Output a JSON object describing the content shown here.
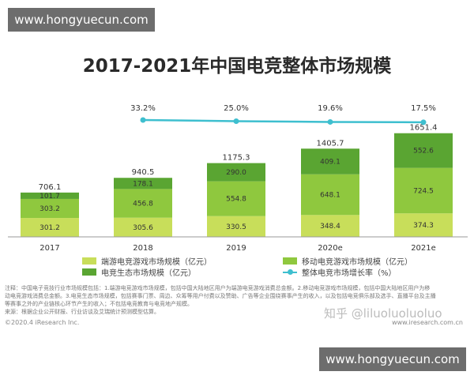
{
  "watermarks": {
    "top": "www.hongyuecun.com",
    "bottom": "www.hongyuecun.com"
  },
  "colors": {
    "client_games": "#c8de5a",
    "mobile_games": "#8fc83e",
    "ecosystem": "#5aa532",
    "growth_line": "#3ebfcf"
  },
  "chart_data": {
    "type": "bar",
    "stacked": true,
    "title": "2017-2021年中国电竞整体市场规模",
    "categories": [
      "2017",
      "2018",
      "2019",
      "2020e",
      "2021e"
    ],
    "series": [
      {
        "name": "端游电竞游戏市场规模（亿元）",
        "values": [
          301.2,
          305.6,
          330.5,
          348.4,
          374.3
        ],
        "value_labels": [
          "301.2",
          "305.6",
          "330.5",
          "348.4",
          "374.3"
        ]
      },
      {
        "name": "移动电竞游戏市场规模（亿元）",
        "values": [
          303.2,
          456.8,
          554.8,
          648.1,
          724.5
        ],
        "value_labels": [
          "303.2",
          "456.8",
          "554.8",
          "648.1",
          "724.5"
        ]
      },
      {
        "name": "电竞生态市场规模（亿元）",
        "values": [
          101.7,
          178.1,
          290.0,
          409.1,
          552.6
        ],
        "value_labels": [
          "101.7",
          "178.1",
          "290.0",
          "409.1",
          "552.6"
        ]
      }
    ],
    "totals": [
      706.1,
      940.5,
      1175.3,
      1405.7,
      1651.4
    ],
    "total_labels": [
      "706.1",
      "940.5",
      "1175.3",
      "1405.7",
      "1651.4"
    ],
    "growth_line": {
      "name": "整体电竞市场增长率（%）",
      "x": [
        "2018",
        "2019",
        "2020e",
        "2021e"
      ],
      "values": [
        33.2,
        25.0,
        19.6,
        17.5
      ],
      "labels": [
        "33.2%",
        "25.0%",
        "19.6%",
        "17.5%"
      ]
    },
    "grid": false,
    "legend_position": "bottom"
  },
  "notes": [
    "注释：中国电子竞技行业市场规模包括：1.端游电竞游戏市场规模，包括中国大陆地区用户为端游电竞游戏消费总金额。2.移动电竞游戏市场规模，包括中国大陆地区用户为移",
    "动电竞游戏消费总金额。3.电竞生态市场规模，包括赛事门票、周边、众筹等用户付费以及赞助、广告等企业围绕赛事产生的收入，以及包括电竞俱乐部及选手、直播平台及主播",
    "等赛事之外的产业链核心环节产生的收入；不包括电竞教育与电竞地产规模。",
    "来源：根据企业公开财报、行业访谈及艾瑞统计预测模型估算。"
  ],
  "zhihu_watermark": "知乎 @liluoluoluoluo",
  "footer": {
    "left": "©2020.4 iResearch Inc.",
    "right": "www.iresearch.com.cn"
  }
}
